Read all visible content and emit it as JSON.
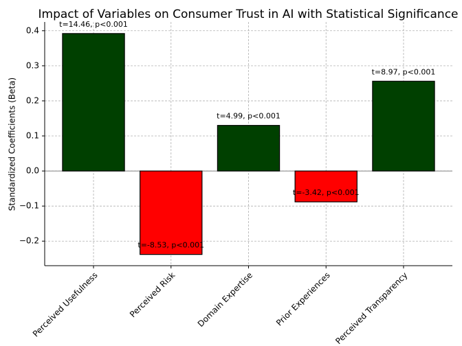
{
  "chart_data": {
    "type": "bar",
    "title": "Impact of Variables on Consumer Trust in AI with Statistical Significance",
    "y_label": "Standardized Coefficients (Beta)",
    "categories": [
      "Perceived Usefulness",
      "Perceived Risk",
      "Domain Expertise",
      "Prior Experiences",
      "Perceived Transparency"
    ],
    "values": [
      0.392,
      -0.238,
      0.13,
      -0.088,
      0.256
    ],
    "colors": [
      "#004000",
      "#ff0000",
      "#004000",
      "#ff0000",
      "#004000"
    ],
    "annotations": [
      "t=14.46, p<0.001",
      "t=-8.53, p<0.001",
      "t=4.99, p<0.001",
      "t=-3.42, p<0.001",
      "t=8.97, p<0.001"
    ],
    "ylim": [
      -0.27,
      0.425
    ],
    "yticks": [
      {
        "value": -0.2,
        "label": "−0.2"
      },
      {
        "value": -0.1,
        "label": "−0.1"
      },
      {
        "value": 0,
        "label": "0.0"
      },
      0.1,
      0.2,
      0.3,
      0.4
    ],
    "grid": true
  }
}
